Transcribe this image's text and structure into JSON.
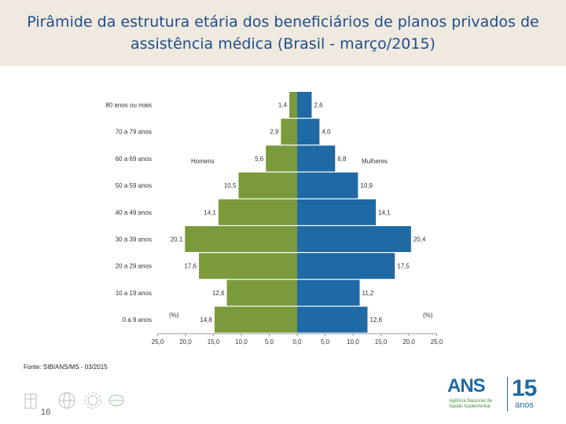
{
  "title": {
    "line1": "Pirâmide da estrutura etária dos beneficiários de planos privados de",
    "line2": "assistência médica (Brasil - março/2015)"
  },
  "colors": {
    "men": "#7b9a3c",
    "women": "#1f6aa5",
    "title": "#1f4e8c",
    "band": "#efe9df"
  },
  "chart_data": {
    "type": "bar",
    "orientation": "horizontal-population-pyramid",
    "categories": [
      "80 anos ou mais",
      "70 a 79 anos",
      "60 a 69 anos",
      "50 a 59 anos",
      "40 a 49 anos",
      "30 a 39 anos",
      "20 a 29 anos",
      "10 a 19 anos",
      "0 a 9 anos"
    ],
    "series": [
      {
        "name": "Homens",
        "values": [
          1.4,
          2.9,
          5.6,
          10.5,
          14.1,
          20.1,
          17.6,
          12.6,
          14.8
        ],
        "labels": [
          "1,4",
          "2,9",
          "5,6",
          "10,5",
          "14,1",
          "20,1",
          "17,6",
          "12,6",
          "14,8"
        ]
      },
      {
        "name": "Mulheres",
        "values": [
          2.6,
          4.0,
          6.8,
          10.9,
          14.1,
          20.4,
          17.5,
          11.2,
          12.6
        ],
        "labels": [
          "2,6",
          "4,0",
          "6,8",
          "10,9",
          "14,1",
          "20,4",
          "17,5",
          "11,2",
          "12,6"
        ]
      }
    ],
    "xlim": [
      -25,
      25
    ],
    "ticks": [
      "25,0",
      "20,0",
      "15,0",
      "10,0",
      "5,0",
      "0,0",
      "5,0",
      "10,0",
      "15,0",
      "20,0",
      "25,0"
    ],
    "unit_label_left": "(%)",
    "unit_label_right": "(%)"
  },
  "source": "Fonte: SIB/ANS/MS - 03/2015",
  "page_number": "16",
  "logo": {
    "name": "ANS",
    "subtitle": "Agência Nacional de Saúde Suplementar",
    "years": "15",
    "years_label": "anos"
  }
}
